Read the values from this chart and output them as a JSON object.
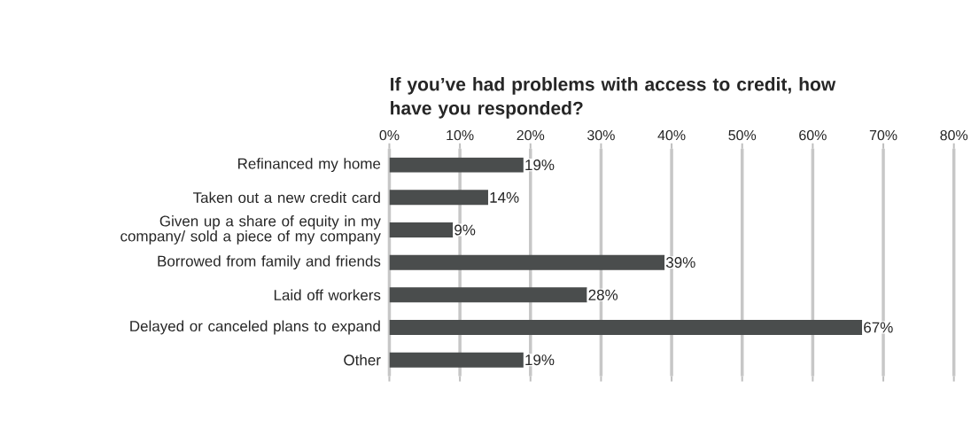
{
  "chart_data": {
    "type": "bar",
    "orientation": "horizontal",
    "title": "If you’ve had problems with access to credit, how have you responded?",
    "categories": [
      "Refinanced my home",
      "Taken out a new credit card",
      "Given up a share of equity in my company/ sold a piece of my company",
      "Borrowed from family and friends",
      "Laid off workers",
      "Delayed or canceled plans to expand",
      "Other"
    ],
    "values": [
      19,
      14,
      9,
      39,
      28,
      67,
      19
    ],
    "value_labels": [
      "19%",
      "14%",
      "9%",
      "39%",
      "28%",
      "67%",
      "19%"
    ],
    "color": "#4a4d4d",
    "xlim": [
      0,
      80
    ],
    "xticks": [
      {
        "value": 0,
        "label": "0%"
      },
      {
        "value": 10,
        "label": "10%"
      },
      {
        "value": 20,
        "label": "20%"
      },
      {
        "value": 30,
        "label": "30%"
      },
      {
        "value": 40,
        "label": "40%"
      },
      {
        "value": 50,
        "label": "50%"
      },
      {
        "value": 60,
        "label": "60%"
      },
      {
        "value": 70,
        "label": "70%"
      },
      {
        "value": 80,
        "label": "80%"
      }
    ],
    "grid": "x"
  }
}
